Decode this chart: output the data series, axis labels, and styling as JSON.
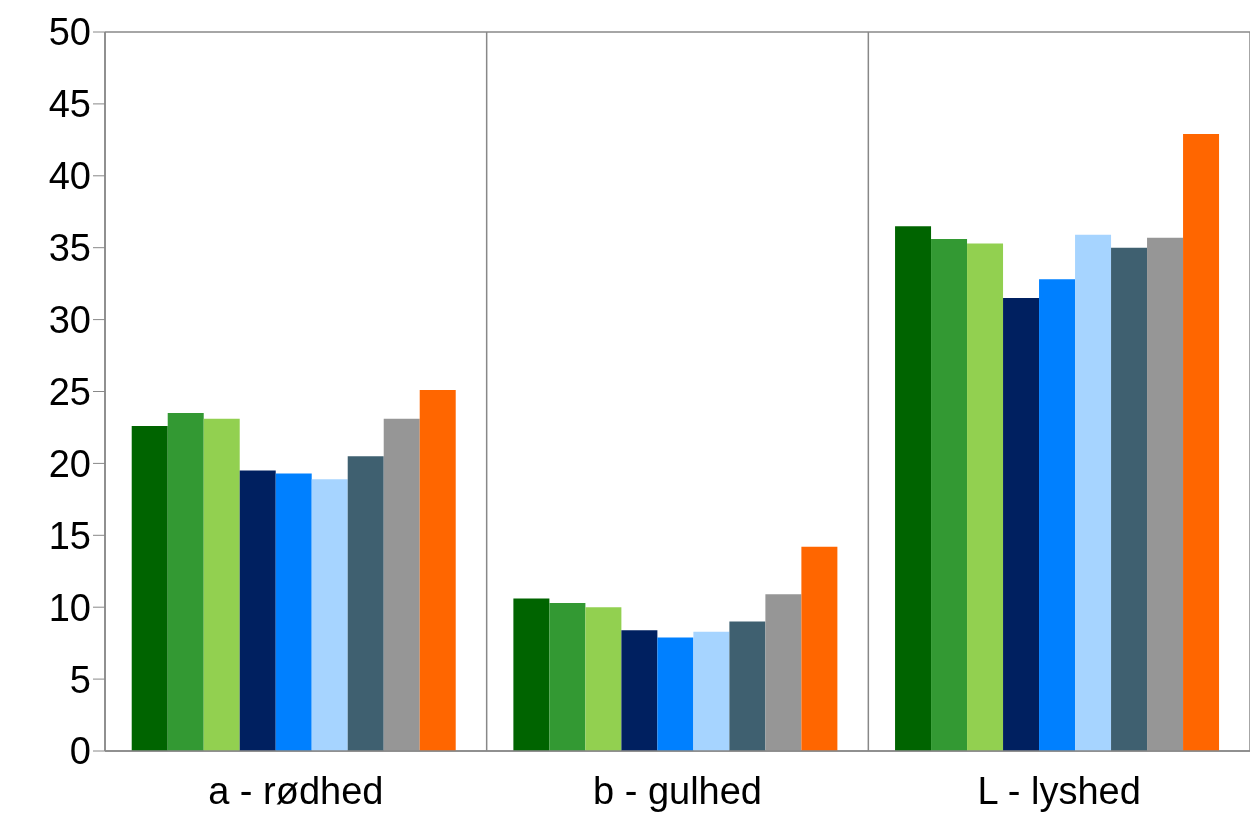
{
  "chart_data": {
    "type": "bar",
    "categories": [
      "a - rødhed",
      "b - gulhed",
      "L - lyshed"
    ],
    "series": [
      {
        "color": "#006400",
        "values": [
          22.6,
          10.6,
          36.5
        ]
      },
      {
        "color": "#339933",
        "values": [
          23.5,
          10.3,
          35.6
        ]
      },
      {
        "color": "#92d050",
        "values": [
          23.1,
          10.0,
          35.3
        ]
      },
      {
        "color": "#002060",
        "values": [
          19.5,
          8.4,
          31.5
        ]
      },
      {
        "color": "#0080ff",
        "values": [
          19.3,
          7.9,
          32.8
        ]
      },
      {
        "color": "#a6d4ff",
        "values": [
          18.9,
          8.3,
          35.9
        ]
      },
      {
        "color": "#3f6070",
        "values": [
          20.5,
          9.0,
          35.0
        ]
      },
      {
        "color": "#969696",
        "values": [
          23.1,
          10.9,
          35.7
        ]
      },
      {
        "color": "#ff6600",
        "values": [
          25.1,
          14.2,
          42.9
        ]
      }
    ],
    "ylim": [
      0,
      50
    ],
    "yticks": [
      0,
      5,
      10,
      15,
      20,
      25,
      30,
      35,
      40,
      45,
      50
    ],
    "grid": true,
    "legend": false
  }
}
